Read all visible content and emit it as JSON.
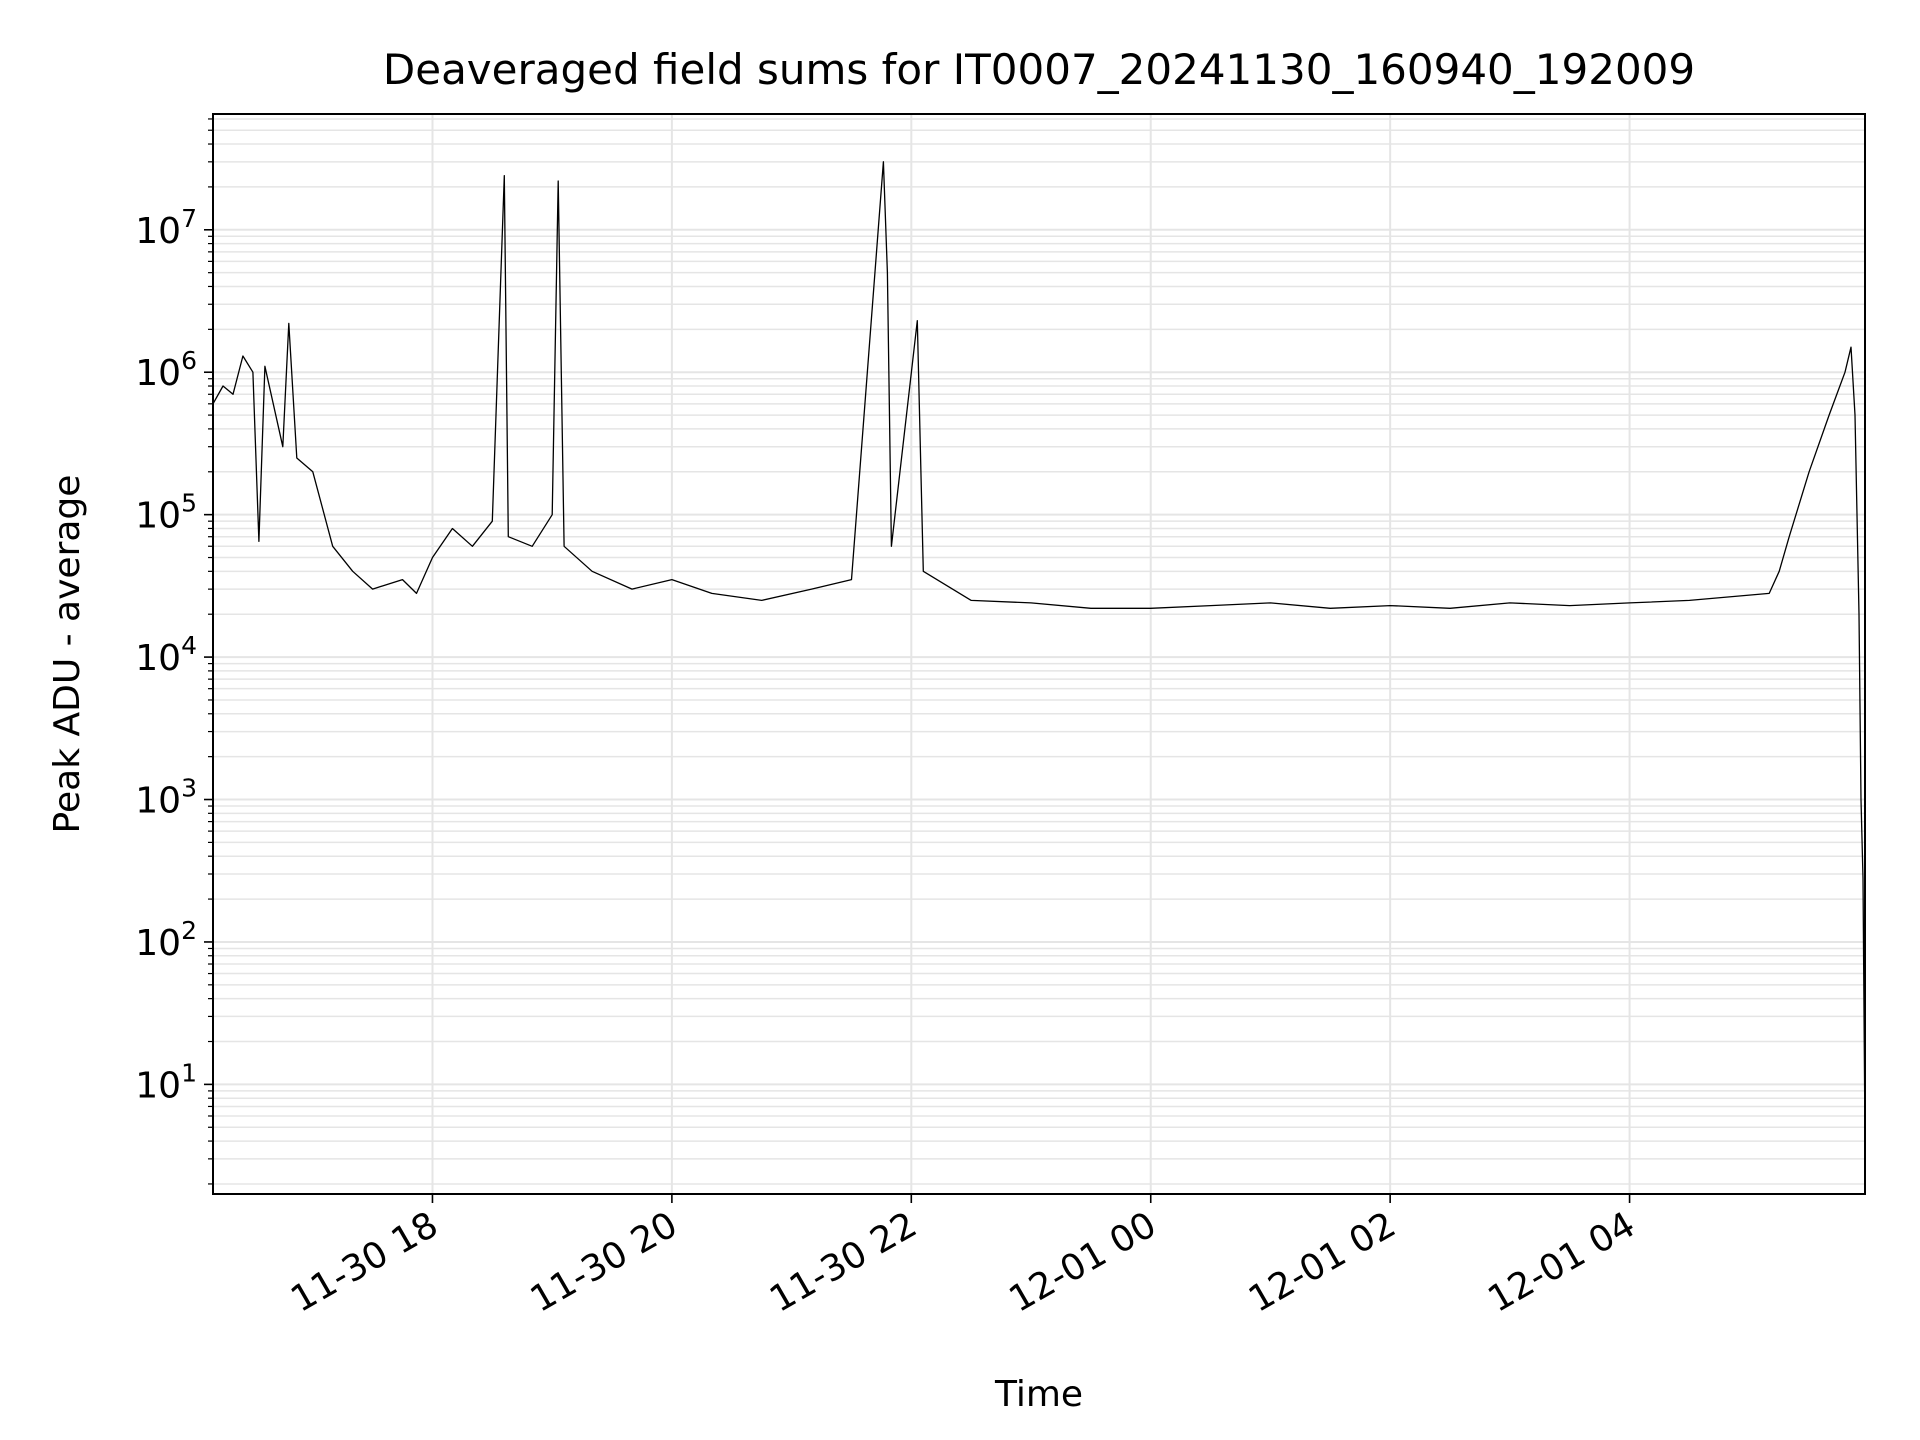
{
  "chart_data": {
    "type": "line",
    "title": "Deaveraged field sums for IT0007_20241130_160940_192009",
    "xlabel": "Time",
    "ylabel": "Peak ADU - average",
    "xlim": [
      "2024-11-30 16:10",
      "2024-12-01 05:58"
    ],
    "ylim": [
      1.7,
      65000000
    ],
    "yscale": "log",
    "grid": true,
    "line_color": "#000000",
    "grid_color": "#e5e5e5",
    "x_ticks": [
      {
        "value": "2024-11-30 18:00",
        "label": "11-30 18"
      },
      {
        "value": "2024-11-30 20:00",
        "label": "11-30 20"
      },
      {
        "value": "2024-11-30 22:00",
        "label": "11-30 22"
      },
      {
        "value": "2024-12-01 00:00",
        "label": "12-01 00"
      },
      {
        "value": "2024-12-01 02:00",
        "label": "12-01 02"
      },
      {
        "value": "2024-12-01 04:00",
        "label": "12-01 04"
      }
    ],
    "y_ticks": [
      {
        "value": 10,
        "base": "10",
        "exp": "1"
      },
      {
        "value": 100,
        "base": "10",
        "exp": "2"
      },
      {
        "value": 1000,
        "base": "10",
        "exp": "3"
      },
      {
        "value": 10000,
        "base": "10",
        "exp": "4"
      },
      {
        "value": 100000,
        "base": "10",
        "exp": "5"
      },
      {
        "value": 1000000,
        "base": "10",
        "exp": "6"
      },
      {
        "value": 10000000,
        "base": "10",
        "exp": "7"
      }
    ],
    "series": [
      {
        "points": [
          [
            "2024-11-30 16:10",
            600000
          ],
          [
            "2024-11-30 16:15",
            800000
          ],
          [
            "2024-11-30 16:20",
            700000
          ],
          [
            "2024-11-30 16:25",
            1300000
          ],
          [
            "2024-11-30 16:30",
            1000000
          ],
          [
            "2024-11-30 16:33",
            65000
          ],
          [
            "2024-11-30 16:36",
            1100000
          ],
          [
            "2024-11-30 16:45",
            300000
          ],
          [
            "2024-11-30 16:48",
            2200000
          ],
          [
            "2024-11-30 16:52",
            250000
          ],
          [
            "2024-11-30 17:00",
            200000
          ],
          [
            "2024-11-30 17:10",
            60000
          ],
          [
            "2024-11-30 17:20",
            40000
          ],
          [
            "2024-11-30 17:30",
            30000
          ],
          [
            "2024-11-30 17:45",
            35000
          ],
          [
            "2024-11-30 17:52",
            28000
          ],
          [
            "2024-11-30 18:00",
            50000
          ],
          [
            "2024-11-30 18:10",
            80000
          ],
          [
            "2024-11-30 18:20",
            60000
          ],
          [
            "2024-11-30 18:30",
            90000
          ],
          [
            "2024-11-30 18:36",
            24000000
          ],
          [
            "2024-11-30 18:38",
            70000
          ],
          [
            "2024-11-30 18:50",
            60000
          ],
          [
            "2024-11-30 19:00",
            100000
          ],
          [
            "2024-11-30 19:03",
            22000000
          ],
          [
            "2024-11-30 19:06",
            60000
          ],
          [
            "2024-11-30 19:20",
            40000
          ],
          [
            "2024-11-30 19:40",
            30000
          ],
          [
            "2024-11-30 20:00",
            35000
          ],
          [
            "2024-11-30 20:20",
            28000
          ],
          [
            "2024-11-30 20:45",
            25000
          ],
          [
            "2024-11-30 21:10",
            30000
          ],
          [
            "2024-11-30 21:30",
            35000
          ],
          [
            "2024-11-30 21:46",
            30000000
          ],
          [
            "2024-11-30 21:48",
            5000000
          ],
          [
            "2024-11-30 21:50",
            60000
          ],
          [
            "2024-11-30 22:03",
            2300000
          ],
          [
            "2024-11-30 22:06",
            40000
          ],
          [
            "2024-11-30 22:30",
            25000
          ],
          [
            "2024-11-30 23:00",
            24000
          ],
          [
            "2024-11-30 23:30",
            22000
          ],
          [
            "2024-12-01 00:00",
            22000
          ],
          [
            "2024-12-01 00:30",
            23000
          ],
          [
            "2024-12-01 01:00",
            24000
          ],
          [
            "2024-12-01 01:30",
            22000
          ],
          [
            "2024-12-01 02:00",
            23000
          ],
          [
            "2024-12-01 02:30",
            22000
          ],
          [
            "2024-12-01 03:00",
            24000
          ],
          [
            "2024-12-01 03:30",
            23000
          ],
          [
            "2024-12-01 04:00",
            24000
          ],
          [
            "2024-12-01 04:30",
            25000
          ],
          [
            "2024-12-01 05:10",
            28000
          ],
          [
            "2024-12-01 05:15",
            40000
          ],
          [
            "2024-12-01 05:20",
            70000
          ],
          [
            "2024-12-01 05:30",
            200000
          ],
          [
            "2024-12-01 05:40",
            500000
          ],
          [
            "2024-12-01 05:48",
            1000000
          ],
          [
            "2024-12-01 05:51",
            1500000
          ],
          [
            "2024-12-01 05:53",
            500000
          ],
          [
            "2024-12-01 05:55",
            20000
          ],
          [
            "2024-12-01 05:56",
            1000
          ],
          [
            "2024-12-01 05:57",
            280
          ],
          [
            "2024-12-01 05:58",
            4
          ]
        ]
      }
    ]
  }
}
